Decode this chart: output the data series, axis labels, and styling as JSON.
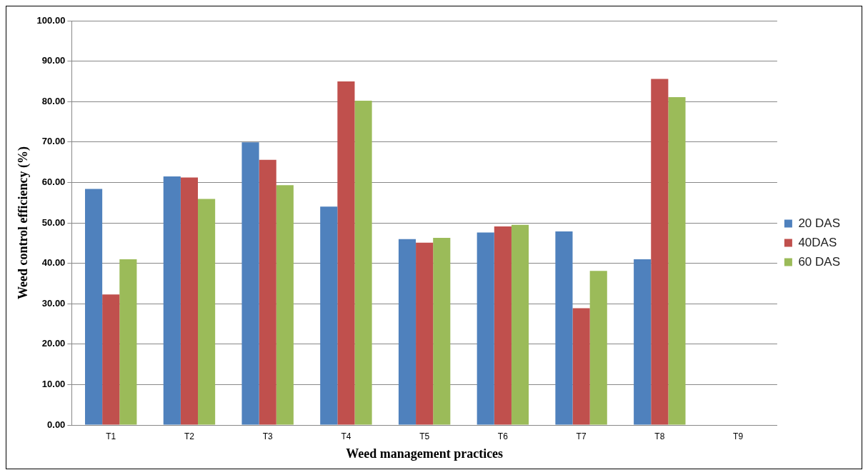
{
  "chart_data": {
    "type": "bar",
    "xlabel": "Weed management practices",
    "ylabel": "Weed control efficiency (%)",
    "categories": [
      "T1",
      "T2",
      "T3",
      "T4",
      "T5",
      "T6",
      "T7",
      "T8",
      "T9"
    ],
    "series": [
      {
        "name": "20 DAS",
        "color": "#4f81bd",
        "values": [
          58.4,
          61.5,
          69.9,
          54.0,
          46.0,
          47.6,
          47.9,
          41.0,
          0
        ]
      },
      {
        "name": "40DAS",
        "color": "#c0504d",
        "values": [
          32.3,
          61.2,
          65.6,
          85.0,
          45.1,
          49.1,
          28.9,
          85.6,
          0
        ]
      },
      {
        "name": "60 DAS",
        "color": "#9bbb59",
        "values": [
          41.0,
          55.9,
          59.3,
          80.2,
          46.3,
          49.5,
          38.1,
          81.1,
          0
        ]
      }
    ],
    "ylim": [
      0,
      100
    ],
    "yticks": [
      {
        "value": 0,
        "label": "0.00"
      },
      {
        "value": 10,
        "label": "10.00"
      },
      {
        "value": 20,
        "label": "20.00"
      },
      {
        "value": 30,
        "label": "30.00"
      },
      {
        "value": 40,
        "label": "40.00"
      },
      {
        "value": 50,
        "label": "50.00"
      },
      {
        "value": 60,
        "label": "60.00"
      },
      {
        "value": 70,
        "label": "70.00"
      },
      {
        "value": 80,
        "label": "80.00"
      },
      {
        "value": 90,
        "label": "90.00"
      },
      {
        "value": 100,
        "label": "100.00"
      }
    ],
    "grid": "y",
    "legend": "right"
  }
}
